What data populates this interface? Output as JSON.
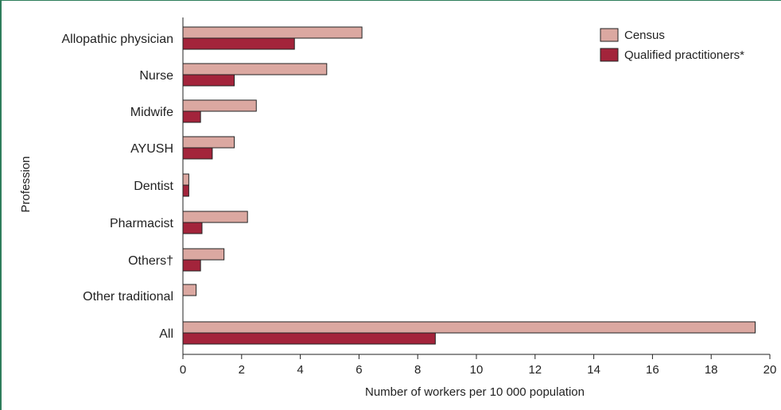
{
  "chart_data": {
    "type": "bar",
    "orientation": "horizontal",
    "xlabel": "Number of workers per 10 000 population",
    "ylabel": "Profession",
    "xlim": [
      0,
      20
    ],
    "xticks": [
      "0",
      "2",
      "4",
      "6",
      "8",
      "10",
      "12",
      "14",
      "16",
      "18",
      "20"
    ],
    "grid": false,
    "legend_position": "top-right",
    "categories": [
      "Allopathic physician",
      "Nurse",
      "Midwife",
      "AYUSH",
      "Dentist",
      "Pharmacist",
      "Others†",
      "Other traditional",
      "All"
    ],
    "series": [
      {
        "name": "Census",
        "color": "#dba8a1",
        "values": [
          6.1,
          4.9,
          2.5,
          1.75,
          0.2,
          2.2,
          1.4,
          0.45,
          19.5
        ]
      },
      {
        "name": "Qualified practitioners*",
        "color": "#a3243b",
        "values": [
          3.8,
          1.75,
          0.6,
          1.0,
          0.2,
          0.65,
          0.6,
          null,
          8.6
        ]
      }
    ]
  }
}
